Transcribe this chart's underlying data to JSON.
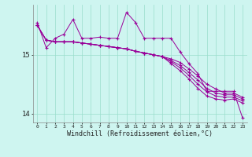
{
  "x": [
    0,
    1,
    2,
    3,
    4,
    5,
    6,
    7,
    8,
    9,
    10,
    11,
    12,
    13,
    14,
    15,
    16,
    17,
    18,
    19,
    20,
    21,
    22,
    23
  ],
  "line_zigzag": [
    15.55,
    15.12,
    15.28,
    15.35,
    15.6,
    15.28,
    15.28,
    15.3,
    15.28,
    15.28,
    15.72,
    15.55,
    15.28,
    15.28,
    15.28,
    15.28,
    15.05,
    14.85,
    14.68,
    14.38,
    14.38,
    14.38,
    14.38,
    13.93
  ],
  "linear1": [
    15.5,
    15.25,
    15.22,
    15.22,
    15.22,
    15.2,
    15.18,
    15.16,
    15.14,
    15.12,
    15.1,
    15.06,
    15.03,
    15.0,
    14.97,
    14.93,
    14.87,
    14.76,
    14.64,
    14.5,
    14.42,
    14.35,
    14.35,
    14.28
  ],
  "linear2": [
    15.5,
    15.25,
    15.22,
    15.22,
    15.22,
    15.2,
    15.18,
    15.16,
    15.14,
    15.12,
    15.1,
    15.06,
    15.03,
    15.0,
    14.97,
    14.9,
    14.82,
    14.7,
    14.57,
    14.43,
    14.35,
    14.32,
    14.32,
    14.25
  ],
  "linear3": [
    15.5,
    15.25,
    15.22,
    15.22,
    15.22,
    15.2,
    15.18,
    15.16,
    15.14,
    15.12,
    15.1,
    15.06,
    15.03,
    15.0,
    14.97,
    14.88,
    14.78,
    14.65,
    14.5,
    14.37,
    14.3,
    14.28,
    14.28,
    14.22
  ],
  "linear4": [
    15.5,
    15.25,
    15.22,
    15.22,
    15.22,
    15.2,
    15.18,
    15.16,
    15.14,
    15.12,
    15.1,
    15.06,
    15.03,
    15.0,
    14.97,
    14.85,
    14.73,
    14.59,
    14.43,
    14.3,
    14.25,
    14.23,
    14.25,
    14.18
  ],
  "bg_color": "#cef5f0",
  "line_color": "#990099",
  "grid_color": "#99ddcc",
  "yticks": [
    14,
    15
  ],
  "xlabel": "Windchill (Refroidissement éolien,°C)",
  "xlim": [
    -0.5,
    23.5
  ],
  "ylim": [
    13.85,
    15.85
  ]
}
